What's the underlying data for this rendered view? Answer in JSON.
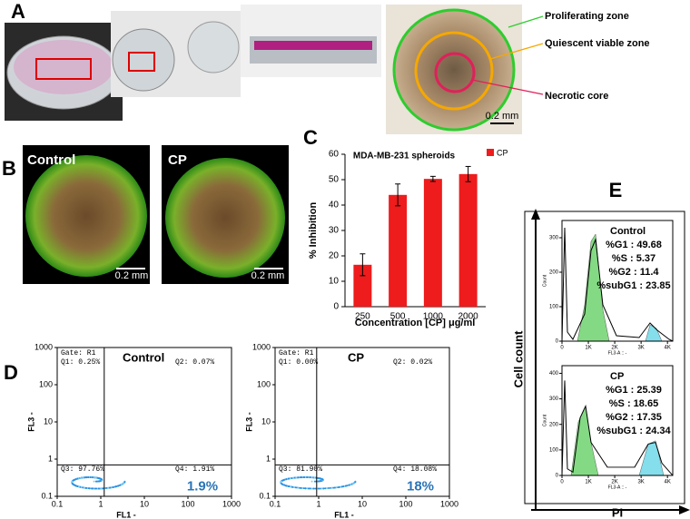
{
  "panels": [
    "A",
    "B",
    "C",
    "D",
    "E"
  ],
  "panel_a": {
    "zones": [
      "Proliferating zone",
      "Quiescent viable zone",
      "Necrotic core"
    ],
    "scale_bar": "0.2 mm"
  },
  "panel_b": {
    "images": [
      {
        "label": "Control",
        "scale_bar": "0.2 mm"
      },
      {
        "label": "CP",
        "scale_bar": "0.2 mm"
      }
    ]
  },
  "chart_data": {
    "type": "bar",
    "title": "MDA-MB-231 spheroids",
    "y_label": "% Inhibition",
    "x_label": "Concentration [CP] μg/ml",
    "categories": [
      "250",
      "500",
      "1000",
      "2000"
    ],
    "series": [
      {
        "name": "CP",
        "color": "#ee1c1c",
        "values": [
          16.5,
          44,
          50.3,
          52.2
        ],
        "errors": [
          4.3,
          4.3,
          1,
          3
        ]
      }
    ],
    "ylim": [
      0,
      60
    ],
    "yticks": [
      0,
      10,
      20,
      30,
      40,
      50,
      60
    ],
    "legend": "top-right"
  },
  "panel_d": {
    "x_label": "FL1 -",
    "y_label": "FL3 -",
    "log_scale": true,
    "xlim": [
      0.1,
      1000
    ],
    "ylim": [
      0.1,
      1000
    ],
    "xticks": [
      0.1,
      1,
      10,
      100,
      1000
    ],
    "yticks": [
      0.1,
      1,
      10,
      100,
      1000
    ],
    "plots": [
      {
        "title": "Control",
        "gate": "Gate: R1",
        "q1": "Q1: 0.25%",
        "q2": "Q2: 0.07%",
        "q3": "Q3: 97.76%",
        "q4": "Q4: 1.91%",
        "highlight": "1.9%"
      },
      {
        "title": "CP",
        "gate": "Gate: R1",
        "q1": "Q1: 0.00%",
        "q2": "Q2: 0.02%",
        "q3": "Q3: 81.90%",
        "q4": "Q4: 18.08%",
        "highlight": "18%"
      }
    ]
  },
  "panel_e": {
    "y_label": "Cell count",
    "x_label": "PI",
    "axis_y_label": "Count",
    "axis_x_label": "FL3-A :: -",
    "xlim": [
      0,
      4200
    ],
    "xticks": [
      {
        "value": 0,
        "label": "0"
      },
      {
        "value": 1000,
        "label": "1K"
      },
      {
        "value": 2000,
        "label": "2K"
      },
      {
        "value": 3000,
        "label": "3K"
      },
      {
        "value": 4000,
        "label": "4K"
      }
    ],
    "plots": [
      {
        "title": "Control",
        "stats": [
          "%G1 : 49.68",
          "%S : 5.37",
          "%G2 : 11.4",
          "%subG1 : 23.85"
        ],
        "ylim": [
          0,
          350
        ],
        "yticks": [
          0,
          100,
          200,
          300
        ]
      },
      {
        "title": "CP",
        "stats": [
          "%G1 : 25.39",
          "%S : 18.65",
          "%G2 : 17.35",
          "%subG1 : 24.34"
        ],
        "ylim": [
          0,
          430
        ],
        "yticks": [
          0,
          100,
          200,
          300,
          400
        ]
      }
    ]
  }
}
